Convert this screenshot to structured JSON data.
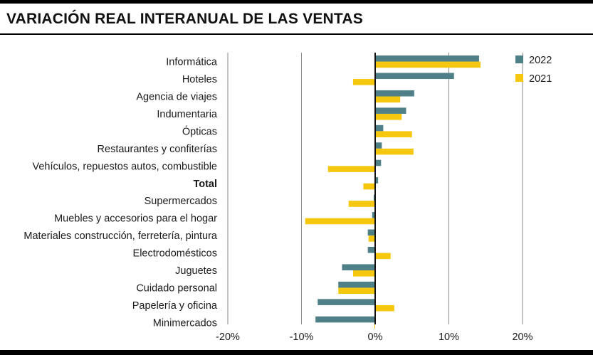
{
  "title": "VARIACIÓN REAL INTERANUAL DE LAS VENTAS",
  "chart_data": {
    "type": "bar",
    "orientation": "horizontal",
    "title": "VARIACIÓN REAL INTERANUAL DE LAS VENTAS",
    "xlabel": "",
    "ylabel": "",
    "xlim": [
      -20,
      20
    ],
    "x_ticks": [
      -20,
      -10,
      0,
      10,
      20
    ],
    "x_tick_labels": [
      "-20%",
      "-10%",
      "0%",
      "10%",
      "20%"
    ],
    "grid": "vertical",
    "legend_position": "top-right",
    "categories": [
      "Informática",
      "Hoteles",
      "Agencia de viajes",
      "Indumentaria",
      "Ópticas",
      "Restaurantes y confiterías",
      "Vehículos, repuestos autos, combustible",
      "Total",
      "Supermercados",
      "Muebles y accesorios para el hogar",
      "Materiales construcción, ferretería, pintura",
      "Electrodomésticos",
      "Juguetes",
      "Cuidado personal",
      "Papelería y oficina",
      "Minimercados"
    ],
    "bold_categories": [
      "Total"
    ],
    "series": [
      {
        "name": "2022",
        "color": "#4f8088",
        "values": [
          14.1,
          10.7,
          5.3,
          4.2,
          1.1,
          0.9,
          0.8,
          0.4,
          -0.2,
          -0.4,
          -1.0,
          -1.0,
          -4.5,
          -5.0,
          -7.8,
          -8.1
        ]
      },
      {
        "name": "2021",
        "color": "#f5c80f",
        "values": [
          14.3,
          -3.0,
          3.4,
          3.6,
          5.0,
          5.2,
          -6.4,
          -1.6,
          -3.6,
          -9.5,
          -0.9,
          2.1,
          -3.0,
          -5.0,
          2.6,
          -0.1
        ]
      }
    ]
  }
}
